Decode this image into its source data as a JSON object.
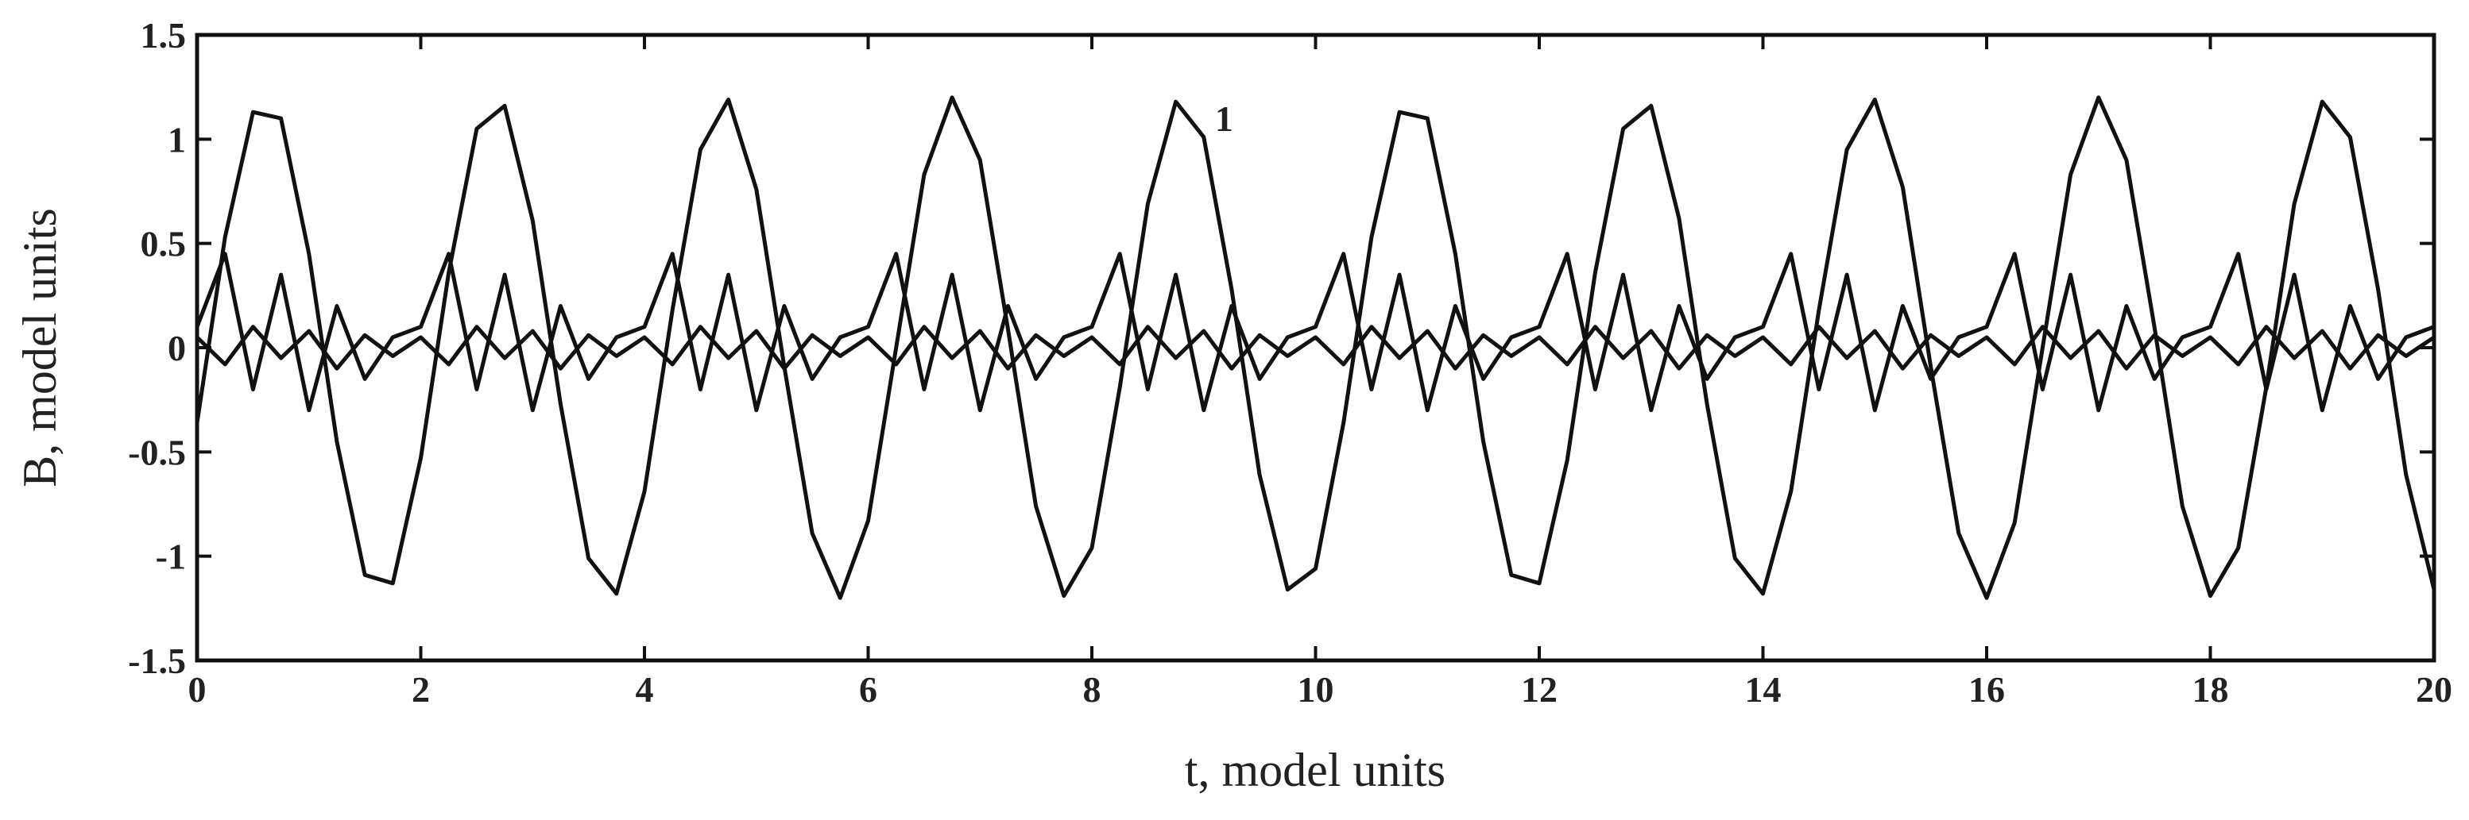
{
  "chart_data": {
    "type": "line",
    "xlabel": "t, model units",
    "ylabel": "B, model units",
    "annotations": [
      {
        "text": "1",
        "x": 9.1,
        "y": 1.1
      }
    ],
    "xlim": [
      0,
      20
    ],
    "ylim": [
      -1.5,
      1.5
    ],
    "xticks": [
      0,
      2,
      4,
      6,
      8,
      10,
      12,
      14,
      16,
      18,
      20
    ],
    "yticks": [
      -1.5,
      -1,
      -0.5,
      0,
      0.5,
      1,
      1.5
    ],
    "x": [
      0,
      0.25,
      0.5,
      0.75,
      1,
      1.25,
      1.5,
      1.75,
      2,
      2.25,
      2.5,
      2.75,
      3,
      3.25,
      3.5,
      3.75,
      4,
      4.25,
      4.5,
      4.75,
      5,
      5.25,
      5.5,
      5.75,
      6,
      6.25,
      6.5,
      6.75,
      7,
      7.25,
      7.5,
      7.75,
      8,
      8.25,
      8.5,
      8.75,
      9,
      9.25,
      9.5,
      9.75,
      10,
      10.25,
      10.5,
      10.75,
      11,
      11.25,
      11.5,
      11.75,
      12,
      12.25,
      12.5,
      12.75,
      13,
      13.25,
      13.5,
      13.75,
      14,
      14.25,
      14.5,
      14.75,
      15,
      15.25,
      15.5,
      15.75,
      16,
      16.25,
      16.5,
      16.75,
      17,
      17.25,
      17.5,
      17.75,
      18,
      18.25,
      18.5,
      18.75,
      19,
      19.25,
      19.5,
      19.75,
      20
    ],
    "series": [
      {
        "color": "#111111",
        "values": [
          -0.36,
          0.53,
          1.13,
          1.1,
          0.45,
          -0.45,
          -1.09,
          -1.13,
          -0.53,
          0.36,
          1.05,
          1.16,
          0.61,
          -0.27,
          -1.01,
          -1.18,
          -0.69,
          0.18,
          0.95,
          1.19,
          0.76,
          -0.09,
          -0.89,
          -1.2,
          -0.83,
          0.0,
          0.83,
          1.2,
          0.9,
          0.09,
          -0.76,
          -1.19,
          -0.96,
          -0.19,
          0.69,
          1.18,
          1.01,
          0.28,
          -0.61,
          -1.16,
          -1.06,
          -0.36,
          0.53,
          1.13,
          1.1,
          0.45,
          -0.45,
          -1.09,
          -1.13,
          -0.54,
          0.36,
          1.05,
          1.16,
          0.62,
          -0.27,
          -1.01,
          -1.18,
          -0.69,
          0.18,
          0.95,
          1.19,
          0.77,
          -0.09,
          -0.89,
          -1.2,
          -0.84,
          0.0,
          0.83,
          1.2,
          0.9,
          0.1,
          -0.76,
          -1.19,
          -0.96,
          -0.19,
          0.69,
          1.18,
          1.01,
          0.28,
          -0.61,
          -1.16
        ]
      },
      {
        "color": "#111111",
        "values": [
          0.1,
          0.45,
          -0.2,
          0.35,
          -0.3,
          0.2,
          -0.15,
          0.05,
          0.1,
          0.45,
          -0.2,
          0.35,
          -0.3,
          0.2,
          -0.15,
          0.05,
          0.1,
          0.45,
          -0.2,
          0.35,
          -0.3,
          0.2,
          -0.15,
          0.05,
          0.1,
          0.45,
          -0.2,
          0.35,
          -0.3,
          0.2,
          -0.15,
          0.05,
          0.1,
          0.45,
          -0.2,
          0.35,
          -0.3,
          0.2,
          -0.15,
          0.05,
          0.1,
          0.45,
          -0.2,
          0.35,
          -0.3,
          0.2,
          -0.15,
          0.05,
          0.1,
          0.45,
          -0.2,
          0.35,
          -0.3,
          0.2,
          -0.15,
          0.05,
          0.1,
          0.45,
          -0.2,
          0.35,
          -0.3,
          0.2,
          -0.15,
          0.05,
          0.1,
          0.45,
          -0.2,
          0.35,
          -0.3,
          0.2,
          -0.15,
          0.05,
          0.1,
          0.45,
          -0.2,
          0.35,
          -0.3,
          0.2,
          -0.15,
          0.05,
          0.1
        ]
      },
      {
        "color": "#111111",
        "values": [
          0.05,
          -0.08,
          0.1,
          -0.05,
          0.08,
          -0.1,
          0.06,
          -0.04,
          0.05,
          -0.08,
          0.1,
          -0.05,
          0.08,
          -0.1,
          0.06,
          -0.04,
          0.05,
          -0.08,
          0.1,
          -0.05,
          0.08,
          -0.1,
          0.06,
          -0.04,
          0.05,
          -0.08,
          0.1,
          -0.05,
          0.08,
          -0.1,
          0.06,
          -0.04,
          0.05,
          -0.08,
          0.1,
          -0.05,
          0.08,
          -0.1,
          0.06,
          -0.04,
          0.05,
          -0.08,
          0.1,
          -0.05,
          0.08,
          -0.1,
          0.06,
          -0.04,
          0.05,
          -0.08,
          0.1,
          -0.05,
          0.08,
          -0.1,
          0.06,
          -0.04,
          0.05,
          -0.08,
          0.1,
          -0.05,
          0.08,
          -0.1,
          0.06,
          -0.04,
          0.05,
          -0.08,
          0.1,
          -0.05,
          0.08,
          -0.1,
          0.06,
          -0.04,
          0.05,
          -0.08,
          0.1,
          -0.05,
          0.08,
          -0.1,
          0.06,
          -0.04,
          0.05
        ]
      }
    ]
  }
}
